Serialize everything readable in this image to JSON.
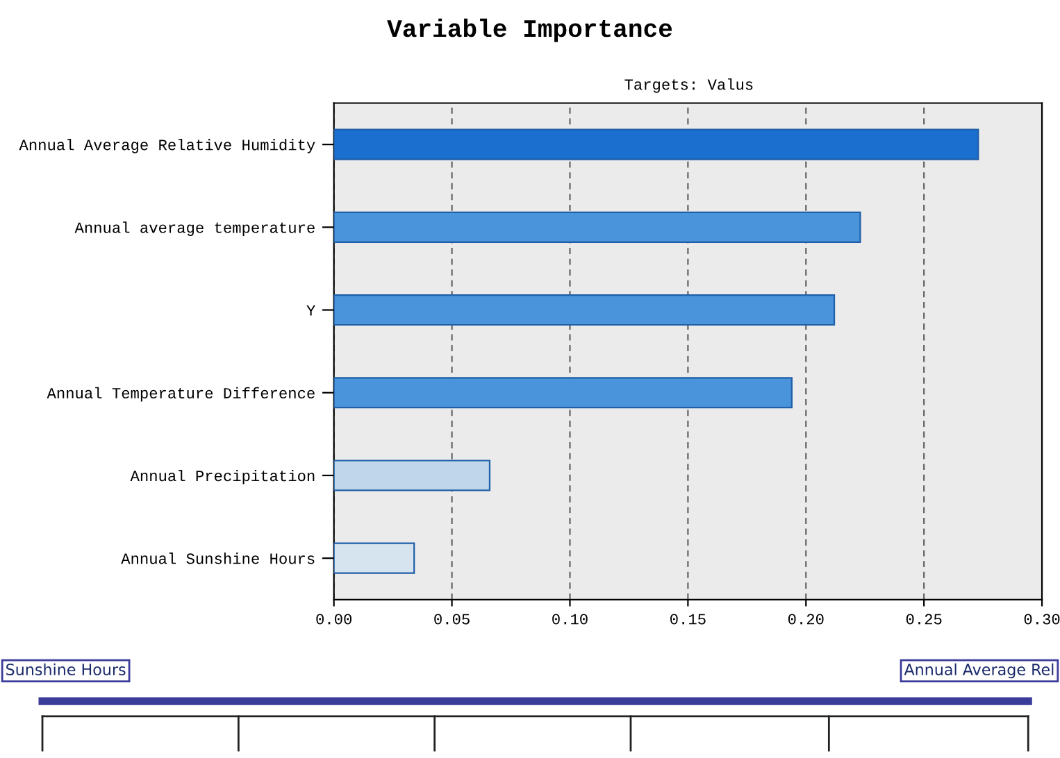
{
  "chart_data": {
    "type": "bar",
    "orientation": "horizontal",
    "title": "Variable Importance",
    "subtitle": "Targets: Valus",
    "categories": [
      "Annual Average Relative Humidity",
      "Annual average temperature",
      "Y",
      "Annual Temperature Difference",
      "Annual Precipitation",
      "Annual Sunshine Hours"
    ],
    "values": [
      0.273,
      0.223,
      0.212,
      0.194,
      0.066,
      0.034
    ],
    "colors": [
      "#1a6fcf",
      "#4a94db",
      "#4a94db",
      "#4a94db",
      "#c0d6ea",
      "#d6e4f0"
    ],
    "xlim": [
      0,
      0.3
    ],
    "xticks": [
      {
        "value": 0,
        "label": "0.00"
      },
      {
        "value": 0.05,
        "label": "0.05"
      },
      {
        "value": 0.1,
        "label": "0.10"
      },
      {
        "value": 0.15,
        "label": "0.15"
      },
      {
        "value": 0.2,
        "label": "0.20"
      },
      {
        "value": 0.25,
        "label": "0.25"
      },
      {
        "value": 0.3,
        "label": "0.30"
      }
    ],
    "grid": "x",
    "annotations": [
      "Sunshine Hours",
      "Annual Average Rel"
    ]
  }
}
